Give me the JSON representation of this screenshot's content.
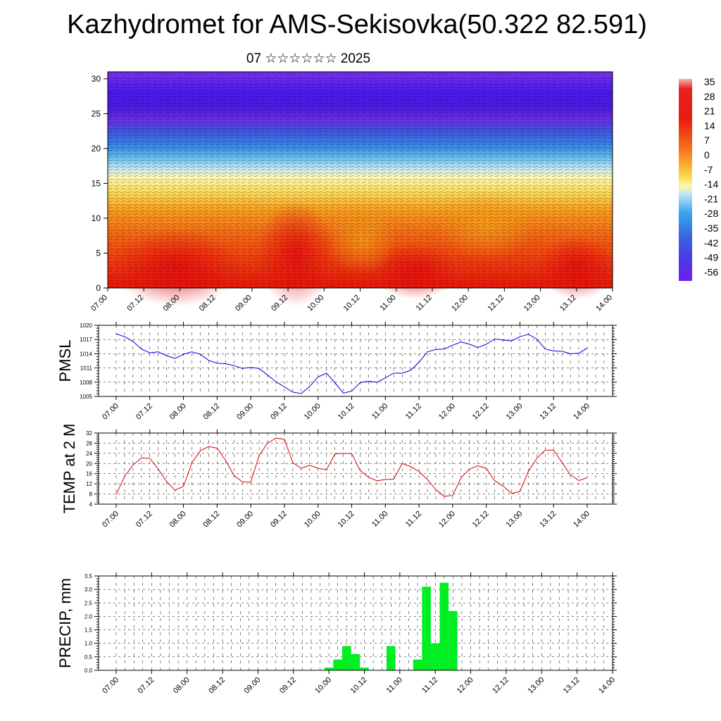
{
  "title": "Kazhydromet for AMS-Sekisovka(50.322 82.591)",
  "subtitle": "07 ☆☆☆☆☆☆ 2025",
  "x_ticks": [
    "07.00",
    "07.12",
    "08.00",
    "08.12",
    "09.00",
    "09.12",
    "10.00",
    "10.12",
    "11.00",
    "11.12",
    "12.00",
    "12.12",
    "13.00",
    "13.12",
    "14.00"
  ],
  "colorbar": {
    "labels": [
      "35",
      "28",
      "21",
      "14",
      "7",
      "0",
      "-7",
      "-14",
      "-21",
      "-28",
      "-35",
      "-42",
      "-49",
      "-56"
    ]
  },
  "chart_data": [
    {
      "type": "heatmap",
      "name": "cross-section",
      "ylim": [
        0,
        31
      ],
      "yticks": [
        "0",
        "5",
        "10",
        "15",
        "20",
        "25",
        "30"
      ],
      "description_levels": "temperature with wind vectors"
    },
    {
      "type": "line",
      "ylabel": "PMSL",
      "ylim": [
        1005,
        1020
      ],
      "yticks": [
        "1005",
        "1008",
        "1011",
        "1014",
        "1017",
        "1020"
      ],
      "color": "#0000dd",
      "values": [
        1018.2,
        1017.6,
        1016.6,
        1015.0,
        1014.2,
        1014.4,
        1013.6,
        1013.0,
        1013.9,
        1014.4,
        1013.9,
        1012.6,
        1012.0,
        1011.9,
        1011.5,
        1010.9,
        1011.1,
        1010.9,
        1009.5,
        1008.1,
        1007.0,
        1005.9,
        1005.6,
        1007.1,
        1009.1,
        1009.9,
        1007.9,
        1005.7,
        1006.1,
        1007.9,
        1008.2,
        1008.0,
        1008.9,
        1009.9,
        1009.9,
        1010.5,
        1012.2,
        1014.4,
        1014.9,
        1015.0,
        1015.8,
        1016.5,
        1016.0,
        1015.3,
        1016.0,
        1017.1,
        1016.9,
        1016.7,
        1017.6,
        1018.1,
        1017.1,
        1015.0,
        1014.6,
        1014.5,
        1014.0,
        1014.1,
        1015.2
      ]
    },
    {
      "type": "line",
      "ylabel": "TEMP at 2 M",
      "ylim": [
        4,
        32
      ],
      "yticks": [
        "4",
        "8",
        "12",
        "16",
        "20",
        "24",
        "28",
        "32"
      ],
      "color": "#dd0000",
      "values": [
        7.7,
        14.9,
        19.4,
        22.2,
        22.0,
        17.8,
        12.9,
        9.5,
        11.0,
        20.3,
        25.0,
        26.7,
        26.0,
        21.3,
        15.3,
        12.8,
        12.6,
        23.2,
        28.0,
        30.0,
        29.5,
        20.3,
        18.1,
        19.3,
        18.1,
        17.5,
        23.8,
        24.0,
        23.9,
        17.3,
        14.6,
        13.2,
        13.7,
        13.8,
        20.0,
        18.8,
        16.8,
        13.7,
        9.7,
        7.1,
        7.4,
        14.4,
        17.8,
        19.1,
        18.1,
        13.3,
        11.1,
        8.2,
        9.0,
        16.9,
        22.0,
        25.3,
        25.3,
        20.4,
        15.6,
        13.3,
        14.4
      ]
    },
    {
      "type": "bar",
      "ylabel": "PRECIP, mm",
      "ylim": [
        0,
        3.5
      ],
      "yticks": [
        "0.0",
        "0.5",
        "1.0",
        "1.5",
        "2.0",
        "2.5",
        "3.0",
        "3.5"
      ],
      "color": "#00ee22",
      "values": [
        0,
        0,
        0,
        0,
        0,
        0,
        0,
        0,
        0,
        0,
        0,
        0,
        0,
        0,
        0,
        0,
        0,
        0,
        0,
        0,
        0,
        0,
        0,
        0,
        0.1,
        0.4,
        0.9,
        0.6,
        0.1,
        0,
        0,
        0.9,
        0,
        0,
        0.4,
        3.1,
        1.0,
        3.25,
        2.2,
        0,
        0,
        0,
        0,
        0,
        0,
        0,
        0,
        0,
        0,
        0,
        0,
        0,
        0,
        0,
        0,
        0,
        0
      ]
    }
  ]
}
